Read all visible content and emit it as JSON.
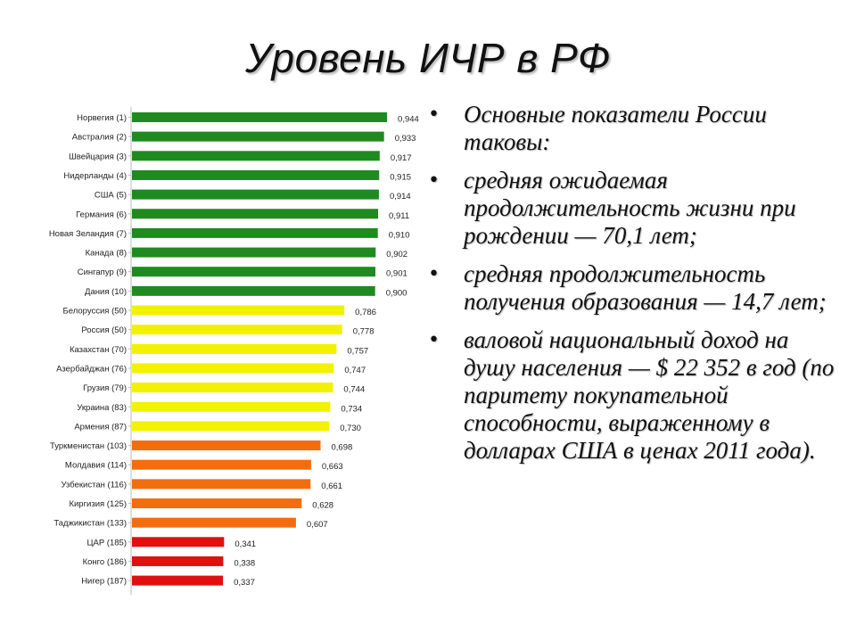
{
  "slide": {
    "title": "Уровень ИЧР в РФ"
  },
  "bullets": [
    "Основные показатели России таковы:",
    "средняя ожидаемая продолжительность жизни при рождении — 70,1 лет;",
    " средняя продолжительность получения образования — 14,7 лет;",
    "валовой национальный доход на душу населения — $ 22 352 в год (по паритету покупательной способности, выраженному в долларах США в ценах 2011 года)."
  ],
  "bullet_glyph": "•",
  "chart_data": {
    "type": "bar",
    "orientation": "horizontal",
    "categories": [
      "Норвегия (1)",
      "Австралия (2)",
      "Швейцария (3)",
      "Нидерланды (4)",
      "США (5)",
      "Германия (6)",
      "Новая Зеландия (7)",
      "Канада (8)",
      "Сингапур (9)",
      "Дания (10)",
      "Белоруссия (50)",
      "Россия (50)",
      "Казахстан (70)",
      "Азербайджан (76)",
      "Грузия (79)",
      "Украина (83)",
      "Армения (87)",
      "Туркменистан (103)",
      "Молдавия (114)",
      "Узбекистан (116)",
      "Киргизия (125)",
      "Таджикистан (133)",
      "ЦАР (185)",
      "Конго (186)",
      "Нигер (187)"
    ],
    "values": [
      0.944,
      0.933,
      0.917,
      0.915,
      0.914,
      0.911,
      0.91,
      0.902,
      0.901,
      0.9,
      0.786,
      0.778,
      0.757,
      0.747,
      0.744,
      0.734,
      0.73,
      0.698,
      0.663,
      0.661,
      0.628,
      0.607,
      0.341,
      0.338,
      0.337
    ],
    "value_labels": [
      "0,944",
      "0,933",
      "0,917",
      "0,915",
      "0,914",
      "0,911",
      "0,910",
      "0,902",
      "0,901",
      "0,900",
      "0,786",
      "0,778",
      "0,757",
      "0,747",
      "0,744",
      "0,734",
      "0,730",
      "0,698",
      "0,663",
      "0,661",
      "0,628",
      "0,607",
      "0,341",
      "0,338",
      "0,337"
    ],
    "bar_colors": [
      "#1f8a1f",
      "#1f8a1f",
      "#1f8a1f",
      "#1f8a1f",
      "#1f8a1f",
      "#1f8a1f",
      "#1f8a1f",
      "#1f8a1f",
      "#1f8a1f",
      "#1f8a1f",
      "#f2f200",
      "#f2f200",
      "#f2f200",
      "#f2f200",
      "#f2f200",
      "#f2f200",
      "#f2f200",
      "#f26d0f",
      "#f26d0f",
      "#f26d0f",
      "#f26d0f",
      "#f26d0f",
      "#e01010",
      "#e01010",
      "#e01010"
    ],
    "xlim": [
      0,
      1
    ],
    "grid": false,
    "legend": "none"
  }
}
